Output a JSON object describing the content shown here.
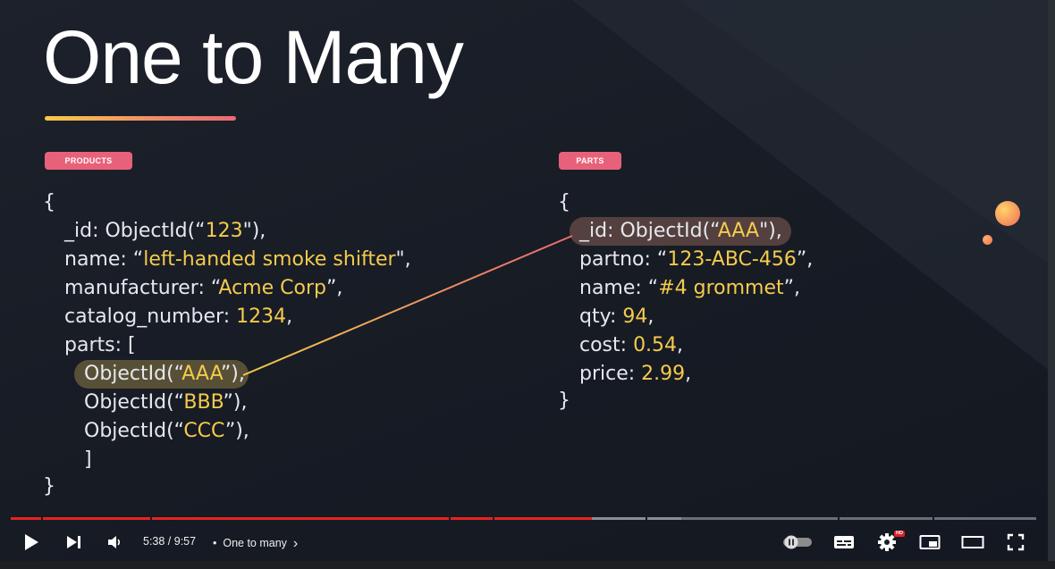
{
  "slide": {
    "title": "One to Many",
    "products_tag": "PRODUCTS",
    "parts_tag": "PARTS",
    "products_lines": {
      "open": "{",
      "id_key": "_id: ObjectId(“",
      "id_val": "123",
      "id_end": "\"),",
      "name_key": "name: “",
      "name_val": "left-handed smoke shifter",
      "name_end": "\",",
      "mfr_key": "manufacturer: “",
      "mfr_val": "Acme Corp",
      "mfr_end": "”,",
      "catalog_key": "catalog_number: ",
      "catalog_val": "1234",
      "catalog_end": ",",
      "parts_key": "parts: [",
      "ref1_key": "ObjectId(“",
      "ref1_val": "AAA",
      "ref1_end": "”),",
      "ref2_key": "ObjectId(“",
      "ref2_val": "BBB",
      "ref2_end": "”),",
      "ref3_key": "ObjectId(“",
      "ref3_val": "CCC",
      "ref3_end": "”),",
      "arr_close": "]",
      "close": "}"
    },
    "parts_lines": {
      "open": "{",
      "id_key": "_id: ObjectId(“",
      "id_val": "AAA",
      "id_end": "\"),",
      "partno_key": "partno: “",
      "partno_val": "123-ABC-456",
      "partno_end": "”,",
      "name_key": "name: “",
      "name_val": "#4 grommet",
      "name_end": "”,",
      "qty_key": "qty: ",
      "qty_val": "94",
      "qty_end": ",",
      "cost_key": "cost: ",
      "cost_val": "0.54",
      "cost_end": ",",
      "price_key": "price: ",
      "price_val": "2.99",
      "price_end": ",",
      "close": "}"
    },
    "colors": {
      "tag": "#e8617a",
      "value_yellow": "#f5cb4c",
      "connector_start": "#f5cb4c",
      "connector_end": "#e86a72"
    }
  },
  "player": {
    "time": "5:38 / 9:57",
    "separator": "•",
    "chapter": "One to many",
    "chapter_chevron": "›",
    "progress_fraction": 0.567,
    "hd_badge": "HD",
    "icons": [
      "play-icon",
      "next-icon",
      "volume-icon",
      "autoplay-toggle-icon",
      "subtitles-icon",
      "settings-icon",
      "miniplayer-icon",
      "theater-mode-icon",
      "fullscreen-icon"
    ],
    "colors": {
      "played": "#e52421",
      "unplayed": "#6b6e73",
      "buffered": "#8a8d92"
    }
  }
}
